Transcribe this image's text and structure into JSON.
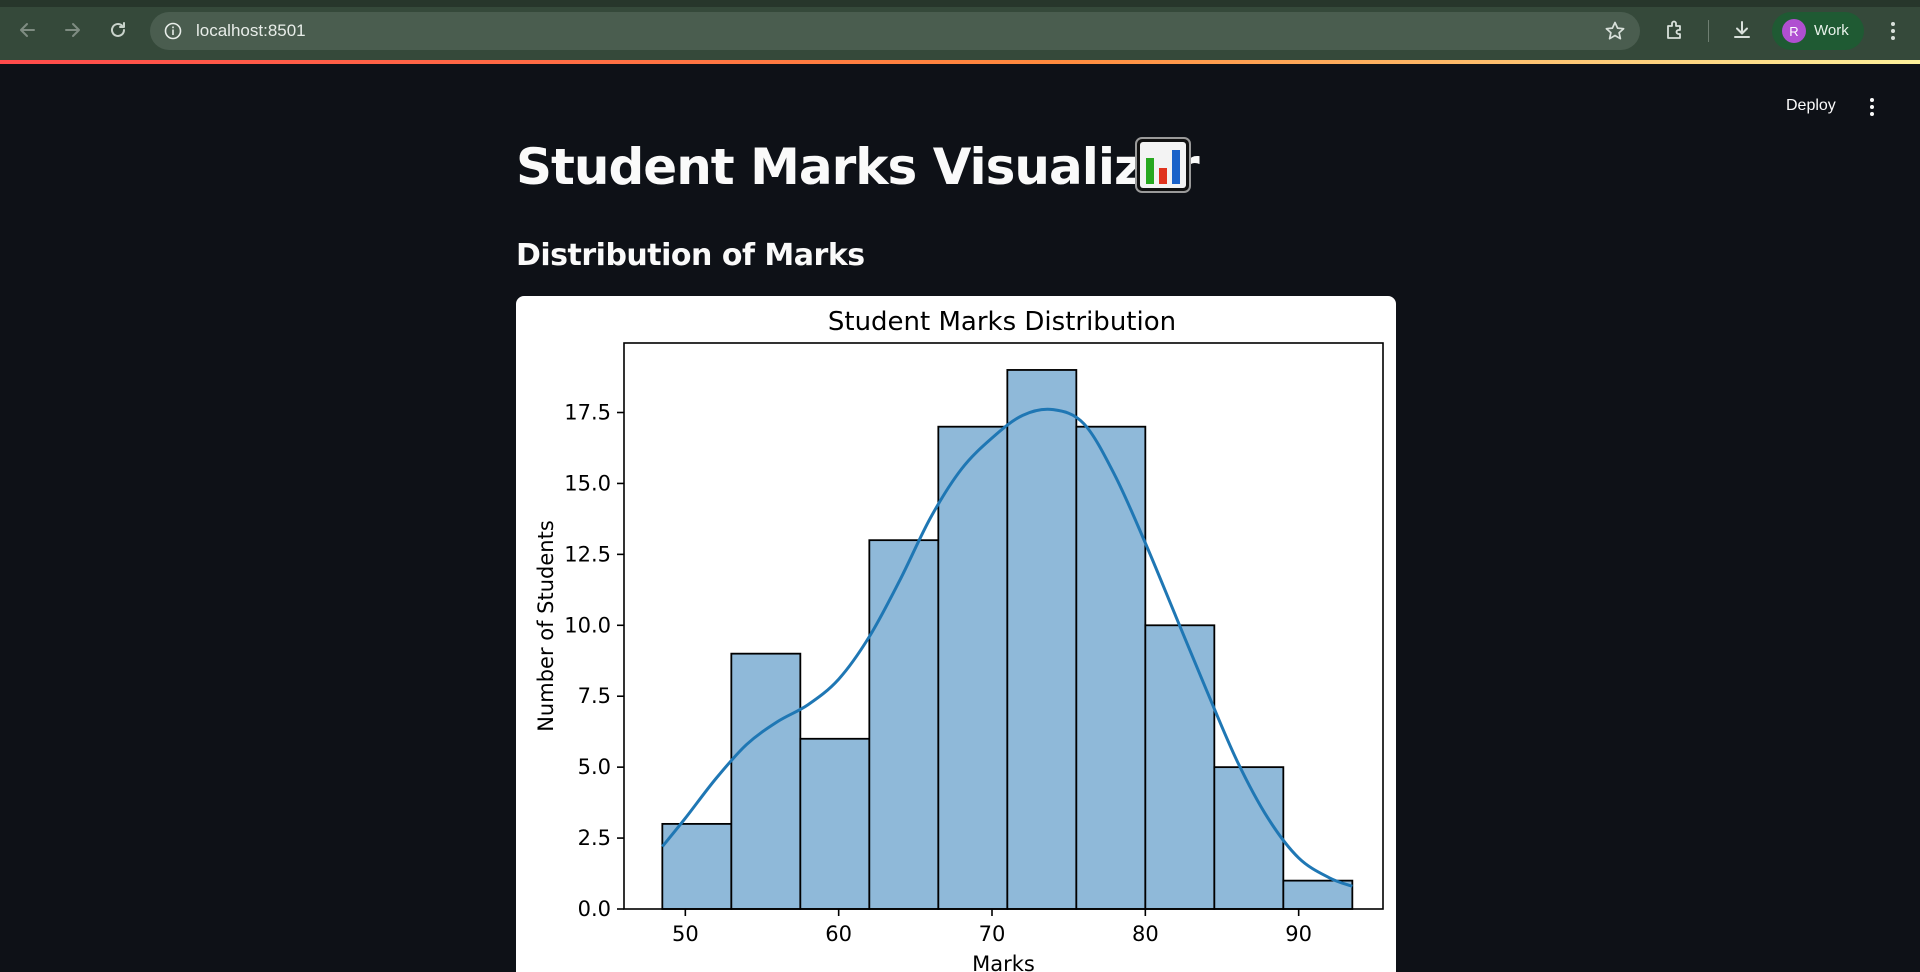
{
  "browser": {
    "url": "localhost:8501",
    "profile_initial": "R",
    "profile_name": "Work"
  },
  "app": {
    "deploy_label": "Deploy",
    "title": "Student Marks Visualizer",
    "subtitle": "Distribution of Marks"
  },
  "chart_data": {
    "type": "bar",
    "title": "Student Marks Distribution",
    "xlabel": "Marks",
    "ylabel": "Number of Students",
    "bin_edges": [
      48.5,
      53.0,
      57.5,
      62.0,
      66.5,
      71.0,
      75.5,
      80.0,
      84.5,
      89.0,
      93.5
    ],
    "values": [
      3,
      9,
      6,
      13,
      17,
      19,
      17,
      10,
      5,
      1
    ],
    "xlim": [
      46,
      95.5
    ],
    "ylim": [
      0,
      19.95
    ],
    "xticks": [
      50,
      60,
      70,
      80,
      90
    ],
    "yticks": [
      0.0,
      2.5,
      5.0,
      7.5,
      10.0,
      12.5,
      15.0,
      17.5
    ],
    "bar_color": "#8fb9d9",
    "kde_color": "#1f77b4",
    "kde": {
      "x": [
        48.5,
        50,
        52,
        54,
        56,
        58,
        60,
        62,
        64,
        66,
        68,
        70,
        72,
        74,
        76,
        78,
        80,
        82,
        84,
        86,
        88,
        90,
        92,
        93.5
      ],
      "y": [
        2.2,
        3.2,
        4.6,
        5.8,
        6.6,
        7.2,
        8.1,
        9.6,
        11.6,
        13.8,
        15.5,
        16.6,
        17.4,
        17.6,
        17.1,
        15.3,
        12.9,
        10.3,
        7.7,
        5.2,
        3.2,
        1.8,
        1.1,
        0.8
      ]
    },
    "grid": false,
    "legend": "none"
  }
}
